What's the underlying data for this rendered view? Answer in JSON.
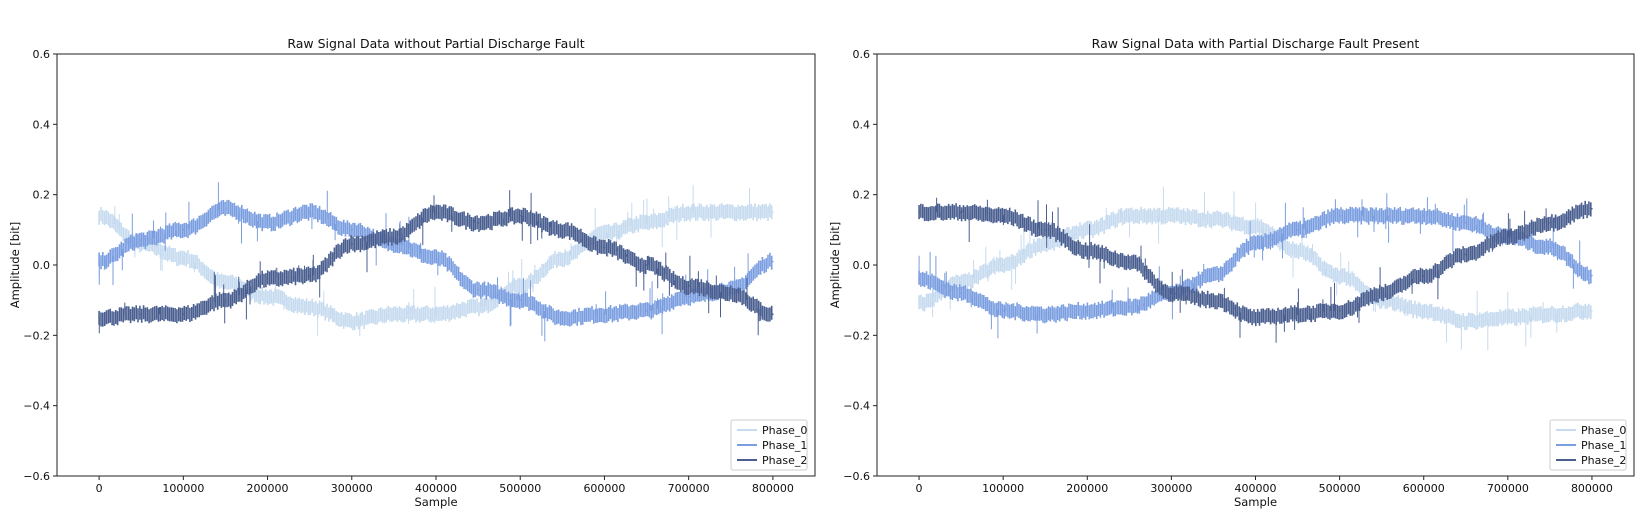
{
  "chart_data": [
    {
      "type": "line",
      "title": "Raw Signal Data without Partial Discharge Fault",
      "xlabel": "Sample",
      "ylabel": "Amplitude [bit]",
      "xlim": [
        -50000,
        850000
      ],
      "ylim": [
        -0.6,
        0.6
      ],
      "xticks": [
        0,
        100000,
        200000,
        300000,
        400000,
        500000,
        600000,
        700000,
        800000
      ],
      "xtick_labels": [
        "0",
        "100000",
        "200000",
        "300000",
        "400000",
        "500000",
        "600000",
        "700000",
        "800000"
      ],
      "yticks": [
        -0.6,
        -0.4,
        -0.2,
        0.0,
        0.2,
        0.4,
        0.6
      ],
      "ytick_labels": [
        "−0.6",
        "−0.4",
        "−0.2",
        "0.0",
        "0.2",
        "0.4",
        "0.6"
      ],
      "grid": false,
      "legend_position": "lower-right",
      "x": [
        0,
        50000,
        100000,
        150000,
        200000,
        250000,
        300000,
        350000,
        400000,
        450000,
        500000,
        550000,
        600000,
        650000,
        700000,
        750000,
        800000
      ],
      "series": [
        {
          "name": "Phase_0",
          "color": "#c6dbef",
          "band_width": 0.04,
          "values": [
            0.14,
            0.06,
            0.02,
            -0.05,
            -0.09,
            -0.12,
            -0.16,
            -0.14,
            -0.14,
            -0.12,
            -0.06,
            0.02,
            0.09,
            0.12,
            0.15,
            0.15,
            0.15
          ]
        },
        {
          "name": "Phase_1",
          "color": "#7b9ee0",
          "band_width": 0.04,
          "values": [
            0.01,
            0.07,
            0.1,
            0.16,
            0.12,
            0.15,
            0.1,
            0.06,
            0.02,
            -0.07,
            -0.1,
            -0.15,
            -0.14,
            -0.13,
            -0.09,
            -0.07,
            0.01
          ]
        },
        {
          "name": "Phase_2",
          "color": "#4a5f90",
          "band_width": 0.04,
          "values": [
            -0.15,
            -0.14,
            -0.14,
            -0.1,
            -0.04,
            -0.03,
            0.06,
            0.08,
            0.15,
            0.12,
            0.14,
            0.1,
            0.05,
            0.0,
            -0.06,
            -0.08,
            -0.14
          ]
        }
      ]
    },
    {
      "type": "line",
      "title": "Raw Signal Data with Partial Discharge Fault Present",
      "xlabel": "Sample",
      "ylabel": "Amplitude [bit]",
      "xlim": [
        -50000,
        850000
      ],
      "ylim": [
        -0.6,
        0.6
      ],
      "xticks": [
        0,
        100000,
        200000,
        300000,
        400000,
        500000,
        600000,
        700000,
        800000
      ],
      "xtick_labels": [
        "0",
        "100000",
        "200000",
        "300000",
        "400000",
        "500000",
        "600000",
        "700000",
        "800000"
      ],
      "yticks": [
        -0.6,
        -0.4,
        -0.2,
        0.0,
        0.2,
        0.4,
        0.6
      ],
      "ytick_labels": [
        "−0.6",
        "−0.4",
        "−0.2",
        "0.0",
        "0.2",
        "0.4",
        "0.6"
      ],
      "grid": false,
      "legend_position": "lower-right",
      "x": [
        0,
        50000,
        100000,
        150000,
        200000,
        250000,
        300000,
        350000,
        400000,
        450000,
        500000,
        550000,
        600000,
        650000,
        700000,
        750000,
        800000
      ],
      "series": [
        {
          "name": "Phase_0",
          "color": "#c6dbef",
          "band_width": 0.04,
          "values": [
            -0.11,
            -0.05,
            0.0,
            0.06,
            0.1,
            0.14,
            0.14,
            0.13,
            0.11,
            0.04,
            -0.03,
            -0.1,
            -0.13,
            -0.16,
            -0.15,
            -0.14,
            -0.13
          ]
        },
        {
          "name": "Phase_1",
          "color": "#7b9ee0",
          "band_width": 0.04,
          "values": [
            -0.04,
            -0.08,
            -0.13,
            -0.14,
            -0.13,
            -0.12,
            -0.08,
            -0.03,
            0.06,
            0.1,
            0.14,
            0.14,
            0.14,
            0.12,
            0.08,
            0.05,
            -0.03
          ]
        },
        {
          "name": "Phase_2",
          "color": "#4a5f90",
          "band_width": 0.04,
          "values": [
            0.15,
            0.15,
            0.14,
            0.1,
            0.04,
            0.01,
            -0.08,
            -0.1,
            -0.15,
            -0.14,
            -0.13,
            -0.08,
            -0.03,
            0.03,
            0.08,
            0.12,
            0.16
          ]
        }
      ]
    }
  ]
}
